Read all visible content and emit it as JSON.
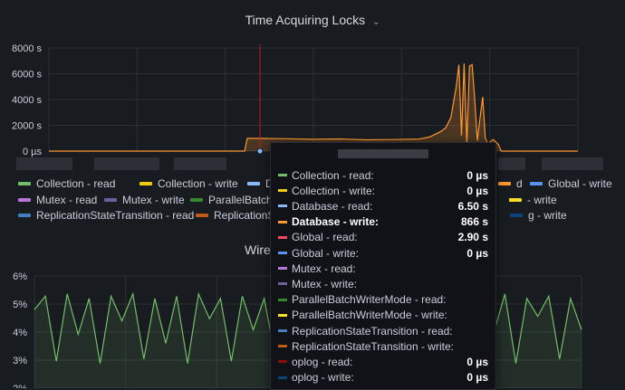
{
  "panel_top": {
    "title": "Time Acquiring Locks",
    "chevron": "⌄"
  },
  "panel_bottom": {
    "title": "Wire"
  },
  "colors": {
    "collection_read": "#73bf69",
    "collection_write": "#f2cc0c",
    "database_read": "#8ab8ff",
    "database_write": "#ff9830",
    "global_read": "#f2495c",
    "global_write": "#5794f2",
    "mutex_read": "#b877d9",
    "mutex_write": "#705da0",
    "parallel_read": "#37872d",
    "parallel_write": "#fade2a",
    "repl_read": "#447ebc",
    "repl_write": "#c15c17",
    "oplog_read": "#890f02",
    "oplog_write": "#0a437c",
    "accent_cursor": "#c4162a"
  },
  "legend": [
    {
      "label": "Collection - read",
      "color": "#73bf69"
    },
    {
      "label": "Collection - write",
      "color": "#f2cc0c"
    },
    {
      "label": "Datab",
      "color": "#8ab8ff"
    },
    {
      "label": "d",
      "color": "#ff9830"
    },
    {
      "label": "Global - write",
      "color": "#5794f2"
    },
    {
      "label": "Mutex - read",
      "color": "#b877d9"
    },
    {
      "label": "Mutex - write",
      "color": "#705da0"
    },
    {
      "label": "ParallelBatch",
      "color": "#37872d"
    },
    {
      "label": "- write",
      "color": "#fade2a"
    },
    {
      "label": "ReplicationStateTransition - read",
      "color": "#447ebc"
    },
    {
      "label": "ReplicationS",
      "color": "#c15c17"
    },
    {
      "label": "g - write",
      "color": "#0a437c"
    }
  ],
  "tooltip": {
    "rows": [
      {
        "name": "Collection - read:",
        "value": "0 µs",
        "color": "#73bf69"
      },
      {
        "name": "Collection - write:",
        "value": "0 µs",
        "color": "#f2cc0c"
      },
      {
        "name": "Database - read:",
        "value": "6.50 s",
        "color": "#8ab8ff"
      },
      {
        "name": "Database - write:",
        "value": "866 s",
        "color": "#ff9830",
        "highlight": true
      },
      {
        "name": "Global - read:",
        "value": "2.90 s",
        "color": "#f2495c"
      },
      {
        "name": "Global - write:",
        "value": "0 µs",
        "color": "#5794f2"
      },
      {
        "name": "Mutex - read:",
        "value": "",
        "color": "#b877d9"
      },
      {
        "name": "Mutex - write:",
        "value": "",
        "color": "#705da0"
      },
      {
        "name": "ParallelBatchWriterMode - read:",
        "value": "",
        "color": "#37872d"
      },
      {
        "name": "ParallelBatchWriterMode - write:",
        "value": "",
        "color": "#fade2a"
      },
      {
        "name": "ReplicationStateTransition - read:",
        "value": "",
        "color": "#447ebc"
      },
      {
        "name": "ReplicationStateTransition - write:",
        "value": "",
        "color": "#c15c17"
      },
      {
        "name": "oplog - read:",
        "value": "0 µs",
        "color": "#890f02"
      },
      {
        "name": "oplog - write:",
        "value": "0 µs",
        "color": "#0a437c"
      }
    ]
  },
  "chart_data": [
    {
      "type": "line",
      "title": "Time Acquiring Locks",
      "yticks": [
        "0 µs",
        "2000 s",
        "4000 s",
        "6000 s",
        "8000 s"
      ],
      "ylim": [
        0,
        8000
      ],
      "xlim": [
        0,
        100
      ],
      "series": [
        {
          "name": "Database - write",
          "color": "#ff9830",
          "x": [
            0,
            37,
            37.5,
            40,
            45,
            50,
            55,
            60,
            65,
            70,
            72,
            74,
            75,
            76,
            77,
            77.5,
            78,
            78.5,
            79,
            79.5,
            80,
            80.5,
            81,
            81.5,
            82,
            82.5,
            83,
            84,
            85,
            85.5,
            100
          ],
          "y": [
            0,
            0,
            1000,
            980,
            960,
            920,
            950,
            880,
            900,
            940,
            1100,
            1500,
            1800,
            2600,
            5000,
            6700,
            1200,
            6800,
            500,
            6600,
            6700,
            4000,
            800,
            2600,
            4200,
            1000,
            600,
            900,
            500,
            0,
            0
          ]
        }
      ],
      "grid": true
    },
    {
      "type": "line",
      "title": "Wire",
      "yticks": [
        "2%",
        "3%",
        "4%",
        "5%",
        "6%"
      ],
      "ylim": [
        1,
        6
      ],
      "xlim": [
        0,
        100
      ],
      "series": [
        {
          "name": "",
          "color": "#73bf69",
          "x": [
            0,
            2,
            4,
            6,
            8,
            10,
            12,
            14,
            16,
            18,
            20,
            22,
            24,
            26,
            28,
            30,
            32,
            34,
            36,
            38,
            40,
            42,
            44,
            46,
            78,
            80,
            82,
            84,
            86,
            88,
            90,
            92,
            94,
            96,
            98,
            100
          ],
          "y": [
            4.5,
            5.1,
            2.2,
            5.2,
            3.4,
            5.0,
            2.1,
            5.1,
            4.0,
            5.2,
            2.3,
            5.0,
            3.0,
            5.1,
            2.1,
            5.2,
            4.1,
            5.0,
            2.2,
            5.1,
            3.6,
            5.0,
            2.4,
            5.2,
            5.0,
            2.2,
            5.1,
            3.5,
            5.2,
            2.1,
            5.0,
            4.2,
            5.1,
            2.3,
            5.0,
            3.6
          ]
        }
      ],
      "grid": true
    }
  ]
}
